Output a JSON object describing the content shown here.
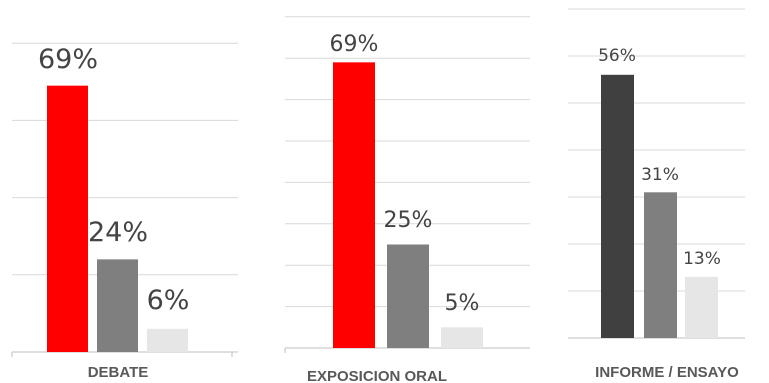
{
  "chart_data": [
    {
      "type": "bar",
      "categories": [
        "DEBATE"
      ],
      "series": [
        {
          "values": [
            69
          ],
          "color": "#ff0000"
        },
        {
          "values": [
            24
          ],
          "color": "#7f7f7f"
        },
        {
          "values": [
            6
          ],
          "color": "#e6e6e6"
        }
      ],
      "data_labels": [
        "69%",
        "24%",
        "6%"
      ],
      "unit": "%",
      "ylim": [
        0,
        100
      ],
      "grid": true
    },
    {
      "type": "bar",
      "categories": [
        "EXPOSICION ORAL"
      ],
      "series": [
        {
          "values": [
            69
          ],
          "color": "#ff0000"
        },
        {
          "values": [
            25
          ],
          "color": "#7f7f7f"
        },
        {
          "values": [
            5
          ],
          "color": "#e6e6e6"
        }
      ],
      "data_labels": [
        "69%",
        "25%",
        "5%"
      ],
      "unit": "%",
      "ylim": [
        0,
        80
      ],
      "grid": true
    },
    {
      "type": "bar",
      "categories": [
        "INFORME / ENSAYO"
      ],
      "series": [
        {
          "values": [
            56
          ],
          "color": "#404040"
        },
        {
          "values": [
            31
          ],
          "color": "#7f7f7f"
        },
        {
          "values": [
            13
          ],
          "color": "#e6e6e6"
        }
      ],
      "data_labels": [
        "56%",
        "31%",
        "13%"
      ],
      "unit": "%",
      "ylim": [
        0,
        70
      ],
      "grid": true
    }
  ]
}
